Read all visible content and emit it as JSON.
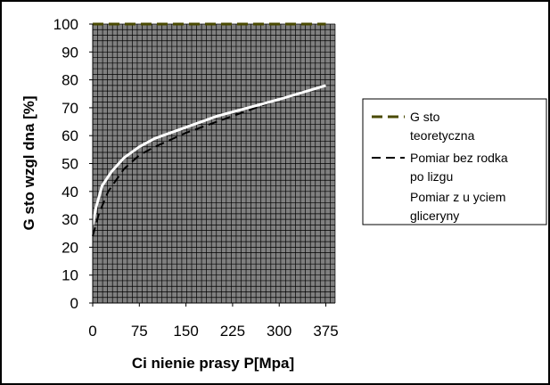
{
  "chart_data": {
    "type": "line",
    "xlabel": "Ci  nienie prasy P[Mpa]",
    "ylabel": "G sto     wzgl  dna [%]",
    "xlim": [
      0,
      390
    ],
    "ylim": [
      0,
      100
    ],
    "x_ticks": [
      "0",
      "75",
      "150",
      "225",
      "300",
      "375"
    ],
    "y_ticks": [
      "0",
      "10",
      "20",
      "30",
      "40",
      "50",
      "60",
      "70",
      "80",
      "90",
      "100"
    ],
    "plot_background": "#808080",
    "grid": true,
    "grid_color": "#000000",
    "legend_position": "right",
    "series": [
      {
        "name_lines": [
          "G  sto",
          "teoretyczna"
        ],
        "color": "#4a4a00",
        "style": "dashed-thick",
        "x": [
          0,
          375
        ],
        "y": [
          100,
          100
        ]
      },
      {
        "name_lines": [
          "Pomiar bez   rodka",
          "po  lizgu"
        ],
        "color": "#000000",
        "style": "dashed",
        "x": [
          0,
          10,
          25,
          50,
          75,
          100,
          150,
          200,
          250,
          300,
          375
        ],
        "y": [
          24,
          32,
          40,
          48,
          53,
          56,
          61,
          65,
          69,
          73,
          78
        ]
      },
      {
        "name_lines": [
          "Pomiar z u  yciem",
          "gliceryny"
        ],
        "color": "#ffffff",
        "style": "solid",
        "x": [
          0,
          5,
          15,
          30,
          50,
          75,
          100,
          150,
          200,
          250,
          300,
          375
        ],
        "y": [
          28,
          34,
          42,
          47,
          52,
          56,
          59,
          63,
          67,
          70,
          73,
          78
        ]
      }
    ]
  }
}
